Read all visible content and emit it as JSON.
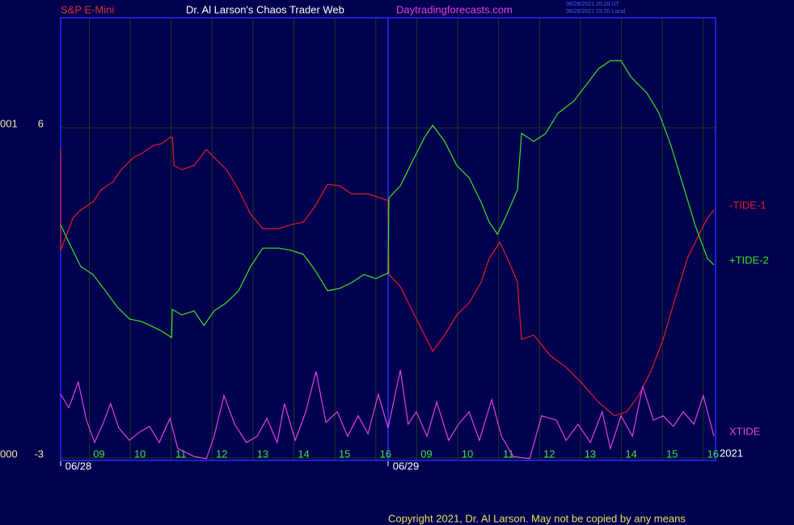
{
  "chart_data": {
    "type": "line",
    "header": {
      "symbol": "S&P E-Mini",
      "title": "Dr. Al Larson's Chaos Trader Web",
      "site": "Daytradingforecasts.com",
      "stamp_ut": "06/28/2021 20:20 UT",
      "stamp_local": "06/28/2021 15:20 Local",
      "file": "spectom.txt"
    },
    "footer": "Copyright 2021, Dr. Al Larson. May not be copied by any means",
    "year_label": "2021",
    "ylim": [
      -3,
      9
    ],
    "yticks": [
      -3,
      6
    ],
    "y_outer_labels": [
      "000",
      "001"
    ],
    "xlim": [
      0,
      16
    ],
    "xticks": [
      {
        "value": 0.7,
        "label": "09"
      },
      {
        "value": 1.7,
        "label": "10"
      },
      {
        "value": 2.7,
        "label": "11"
      },
      {
        "value": 3.7,
        "label": "12"
      },
      {
        "value": 4.7,
        "label": "13"
      },
      {
        "value": 5.7,
        "label": "14"
      },
      {
        "value": 6.7,
        "label": "15"
      },
      {
        "value": 7.7,
        "label": "16"
      },
      {
        "value": 8.7,
        "label": "09"
      },
      {
        "value": 9.7,
        "label": "10"
      },
      {
        "value": 10.7,
        "label": "11"
      },
      {
        "value": 11.7,
        "label": "12"
      },
      {
        "value": 12.7,
        "label": "13"
      },
      {
        "value": 13.7,
        "label": "14"
      },
      {
        "value": 14.7,
        "label": "15"
      },
      {
        "value": 15.7,
        "label": "16"
      }
    ],
    "xdates": [
      {
        "value": 0,
        "label": "06/28"
      },
      {
        "value": 8,
        "label": "06/29"
      }
    ],
    "grid": true,
    "series": [
      {
        "name": "-TIDE-1",
        "color": "#e02020",
        "x": [
          0,
          0,
          0.3,
          0.49,
          0.79,
          0.99,
          1.28,
          1.48,
          1.78,
          1.98,
          2.27,
          2.47,
          2.67,
          2.73,
          2.77,
          2.96,
          3.26,
          3.56,
          3.75,
          4.05,
          4.35,
          4.64,
          4.94,
          5.33,
          5.63,
          5.93,
          6.22,
          6.52,
          6.81,
          7.11,
          7.51,
          7.8,
          8.0,
          8.02,
          8.3,
          8.59,
          8.89,
          9.09,
          9.38,
          9.68,
          9.98,
          10.27,
          10.47,
          10.73,
          10.96,
          11.16,
          11.26,
          11.56,
          11.95,
          12.35,
          12.74,
          13.14,
          13.53,
          13.83,
          14.12,
          14.42,
          14.72,
          15.01,
          15.31,
          15.6,
          15.8,
          15.96
        ],
        "values": [
          5.41,
          2.66,
          3.54,
          3.76,
          3.98,
          4.31,
          4.53,
          4.86,
          5.19,
          5.3,
          5.52,
          5.57,
          5.74,
          5.74,
          4.97,
          4.86,
          4.97,
          5.41,
          5.19,
          4.86,
          4.31,
          3.65,
          3.25,
          3.25,
          3.36,
          3.43,
          3.87,
          4.46,
          4.42,
          4.2,
          4.2,
          4.09,
          4.02,
          2.0,
          1.67,
          1.01,
          0.35,
          -0.09,
          0.35,
          0.9,
          1.23,
          1.78,
          2.44,
          2.88,
          2.33,
          1.78,
          0.24,
          0.35,
          -0.2,
          -0.53,
          -0.97,
          -1.48,
          -1.85,
          -1.74,
          -1.3,
          -0.64,
          0.24,
          1.34,
          2.44,
          3.1,
          3.54,
          3.76
        ]
      },
      {
        "name": "+TIDE-2",
        "color": "#40e020",
        "x": [
          0,
          0.2,
          0.49,
          0.79,
          1.09,
          1.38,
          1.68,
          1.98,
          2.27,
          2.47,
          2.71,
          2.73,
          2.96,
          3.26,
          3.5,
          3.75,
          4.05,
          4.35,
          4.64,
          4.94,
          5.33,
          5.63,
          5.93,
          6.22,
          6.52,
          6.81,
          7.11,
          7.41,
          7.7,
          8.0,
          8.02,
          8.3,
          8.59,
          8.89,
          9.09,
          9.38,
          9.68,
          9.98,
          10.27,
          10.47,
          10.67,
          10.86,
          11.16,
          11.26,
          11.56,
          11.85,
          12.15,
          12.54,
          12.84,
          13.14,
          13.43,
          13.69,
          13.93,
          14.32,
          14.62,
          14.91,
          15.21,
          15.51,
          15.8,
          15.96
        ],
        "values": [
          3.36,
          2.88,
          2.22,
          2.0,
          1.56,
          1.12,
          0.79,
          0.72,
          0.57,
          0.46,
          0.28,
          1.05,
          0.9,
          1.01,
          0.61,
          1.01,
          1.23,
          1.56,
          2.22,
          2.72,
          2.72,
          2.66,
          2.55,
          2.11,
          1.56,
          1.62,
          1.78,
          2.0,
          1.89,
          2.04,
          4.09,
          4.42,
          5.08,
          5.74,
          6.07,
          5.63,
          4.97,
          4.64,
          3.98,
          3.43,
          3.1,
          3.54,
          4.31,
          5.85,
          5.63,
          5.85,
          6.4,
          6.73,
          7.17,
          7.61,
          7.83,
          7.83,
          7.39,
          6.95,
          6.4,
          5.52,
          4.42,
          3.32,
          2.44,
          2.26
        ]
      },
      {
        "name": "XTIDE",
        "color": "#e040e0",
        "x": [
          0,
          0.2,
          0.43,
          0.63,
          0.83,
          1.03,
          1.22,
          1.42,
          1.68,
          1.92,
          2.17,
          2.41,
          2.67,
          2.86,
          3.26,
          3.56,
          3.75,
          3.99,
          4.25,
          4.54,
          4.8,
          5.04,
          5.29,
          5.47,
          5.73,
          5.99,
          6.24,
          6.48,
          6.76,
          7.01,
          7.27,
          7.51,
          7.76,
          8.0,
          8.3,
          8.49,
          8.69,
          8.95,
          9.19,
          9.48,
          9.72,
          9.98,
          10.23,
          10.53,
          10.77,
          11.06,
          11.46,
          11.75,
          12.11,
          12.35,
          12.64,
          12.94,
          13.23,
          13.43,
          13.69,
          13.97,
          14.22,
          14.48,
          14.72,
          14.97,
          15.21,
          15.47,
          15.7,
          15.96
        ],
        "values": [
          -1.26,
          -1.63,
          -0.93,
          -1.97,
          -2.58,
          -2.08,
          -1.52,
          -2.18,
          -2.52,
          -2.3,
          -2.14,
          -2.58,
          -1.92,
          -2.74,
          -2.96,
          -3.02,
          -2.41,
          -1.3,
          -2.08,
          -2.58,
          -2.41,
          -1.92,
          -2.58,
          -1.52,
          -2.52,
          -1.74,
          -0.64,
          -2.03,
          -1.74,
          -2.41,
          -1.85,
          -2.34,
          -1.26,
          -2.18,
          -0.6,
          -2.08,
          -1.74,
          -2.41,
          -1.48,
          -2.52,
          -2.08,
          -1.74,
          -2.52,
          -1.41,
          -2.41,
          -2.96,
          -3.02,
          -1.85,
          -1.97,
          -2.52,
          -2.08,
          -2.58,
          -1.74,
          -2.74,
          -1.85,
          -2.41,
          -1.04,
          -1.97,
          -1.85,
          -2.14,
          -1.74,
          -2.08,
          -1.3,
          -2.41
        ]
      }
    ]
  }
}
